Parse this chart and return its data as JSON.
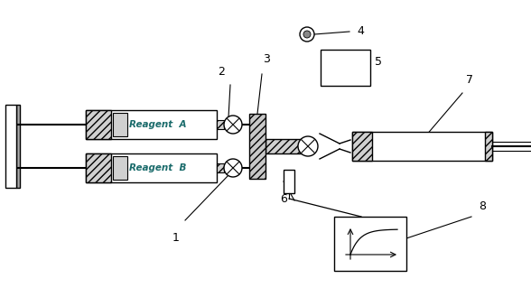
{
  "bg_color": "#ffffff",
  "text_color": "#000000",
  "label_color": "#1a6b6b",
  "figsize": [
    5.88,
    3.19
  ],
  "dpi": 100
}
